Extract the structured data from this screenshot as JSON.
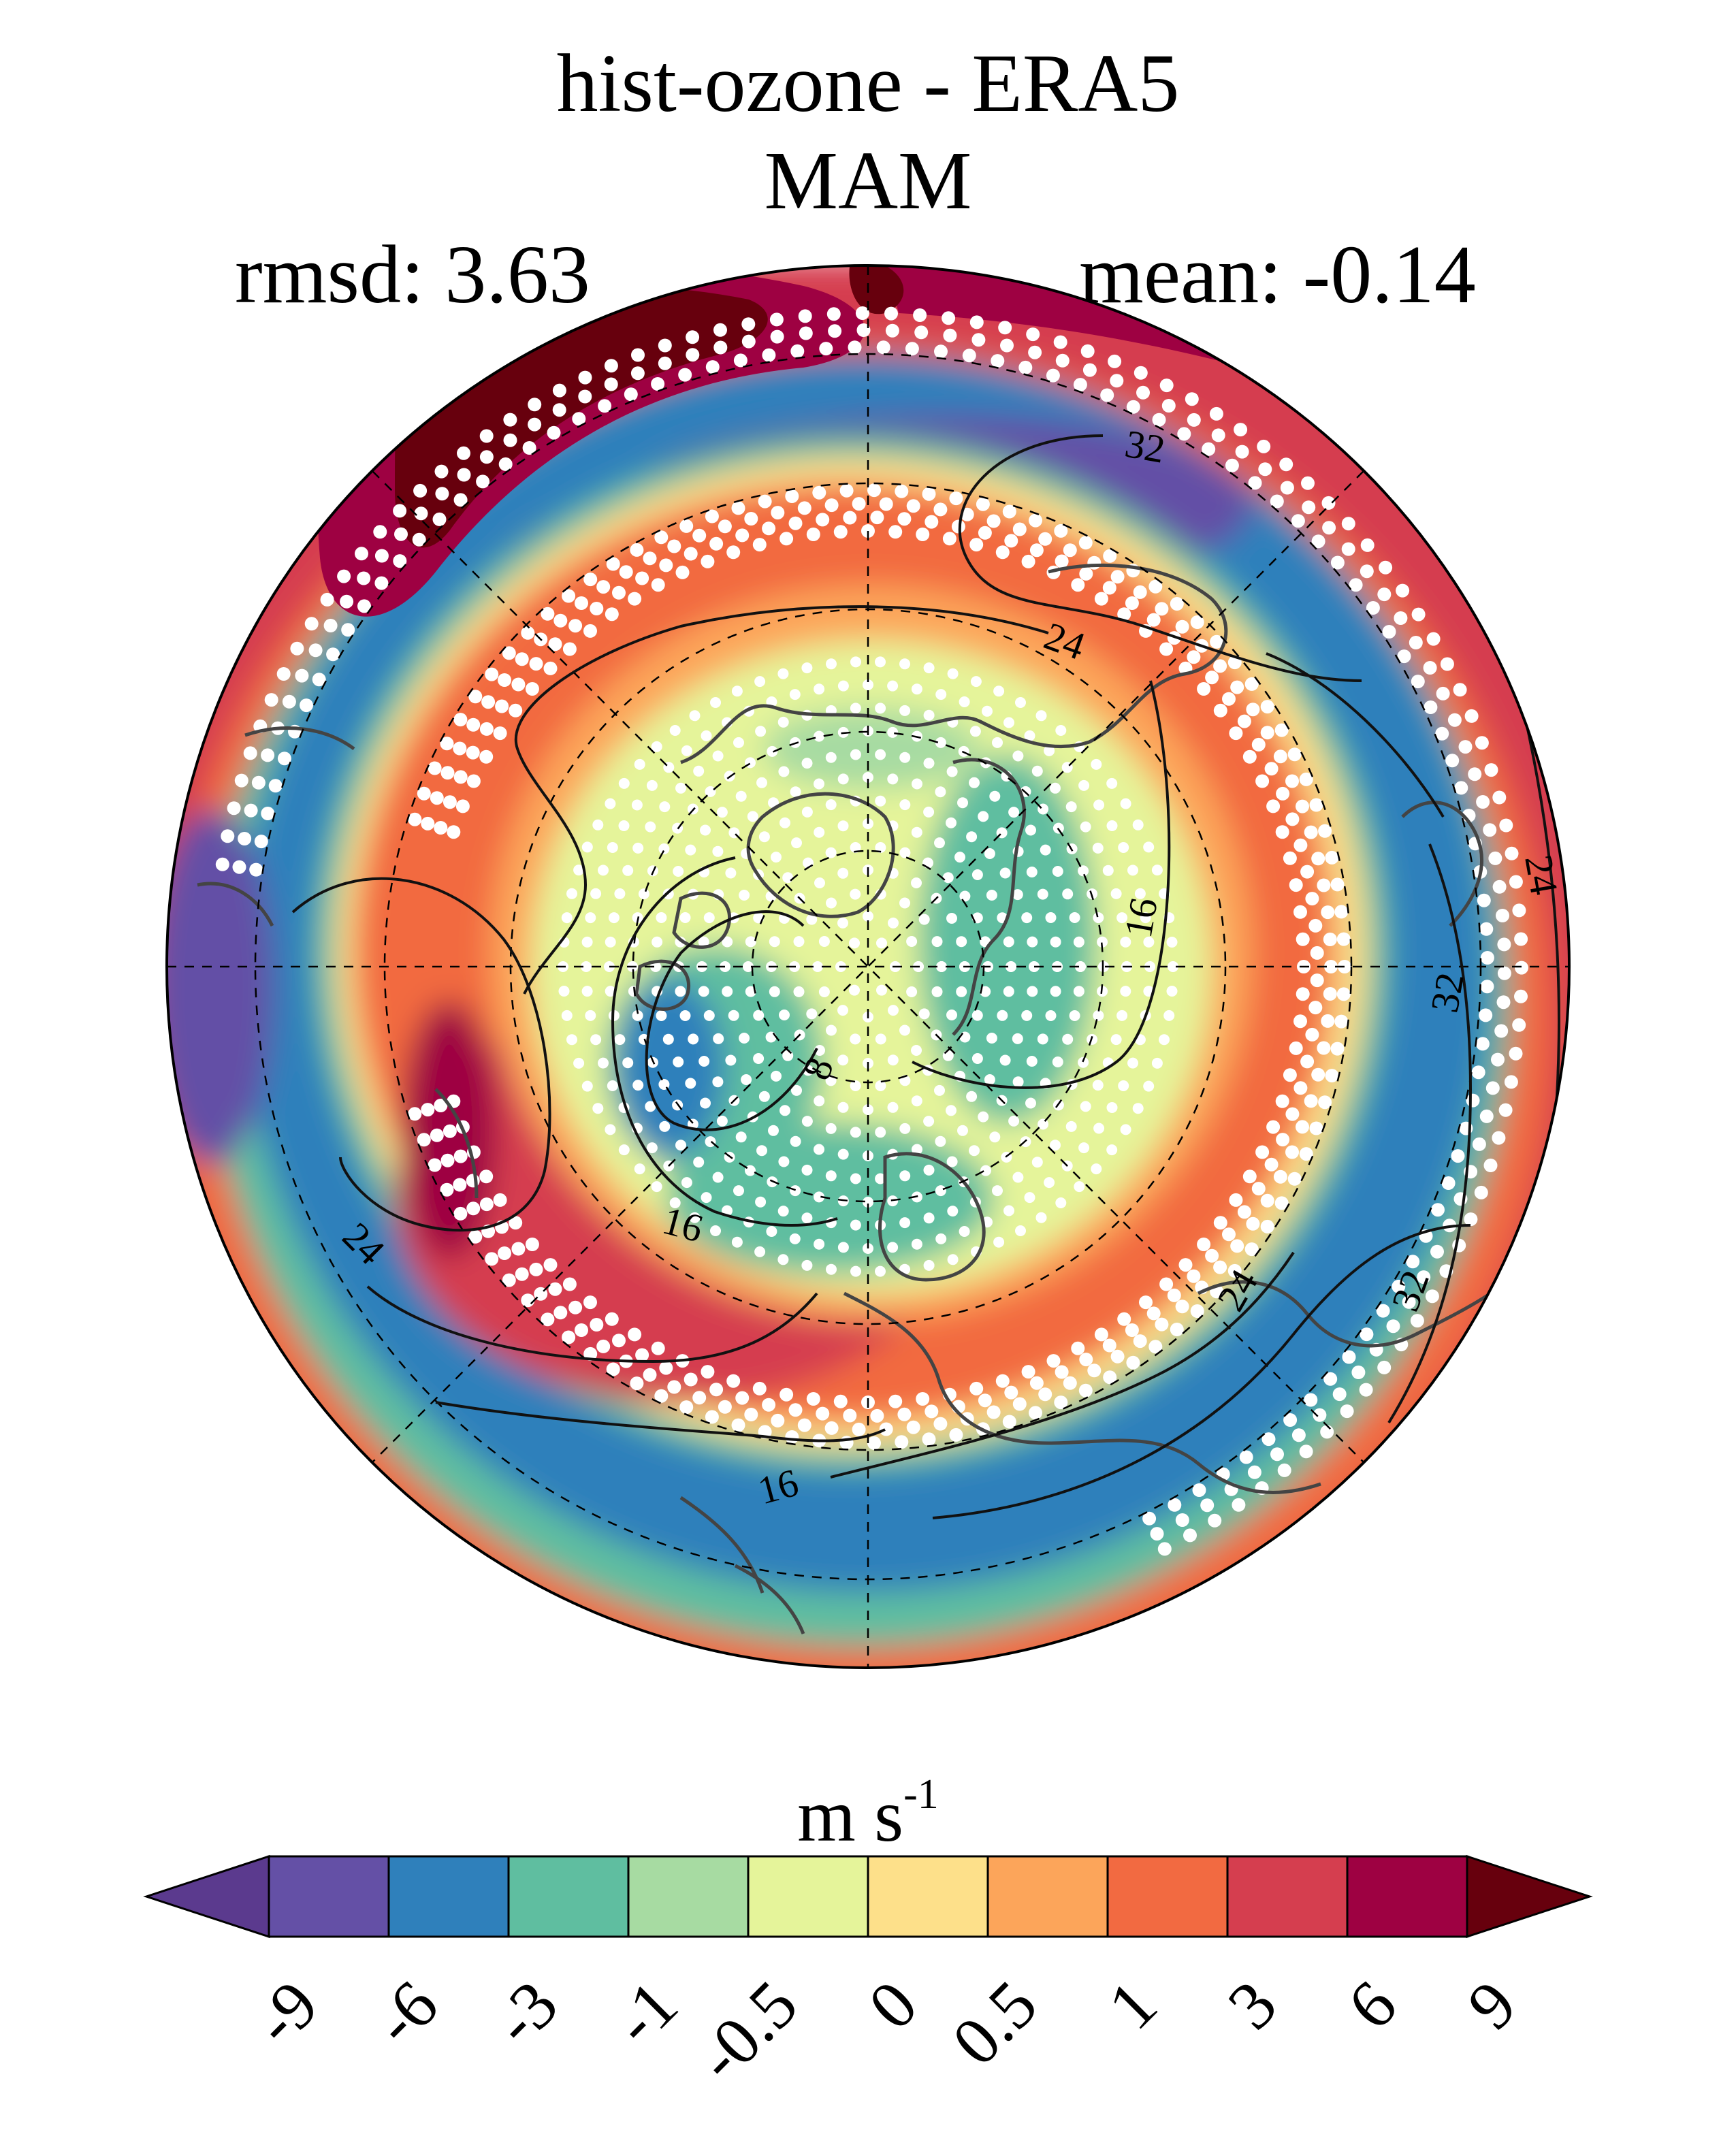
{
  "title": "hist-ozone - ERA5",
  "subtitle": "MAM",
  "stats": {
    "rmsd_label": "rmsd: 3.63",
    "mean_label": "mean: -0.14"
  },
  "map": {
    "projection": "north-polar-stereographic",
    "contour_labels": [
      "32",
      "24",
      "16",
      "8",
      "16",
      "24",
      "16",
      "24",
      "32",
      "24",
      "16",
      "32"
    ],
    "stippling": "white dots",
    "coastlines": "dark gray"
  },
  "colorbar": {
    "units_base": "m s",
    "units_exp": "-1",
    "tick_labels": [
      "-9",
      "-6",
      "-3",
      "-1",
      "-0.5",
      "0",
      "0.5",
      "1",
      "3",
      "6",
      "9"
    ],
    "colors": [
      "#5b3a8e",
      "#6450a6",
      "#2f80bb",
      "#5fbea0",
      "#a7dba2",
      "#e5f49a",
      "#fde08a",
      "#fca55a",
      "#f26a41",
      "#d53e4f",
      "#9e0142",
      "#67000d"
    ]
  }
}
